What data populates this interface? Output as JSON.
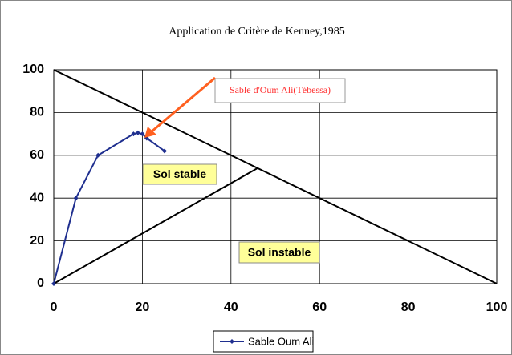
{
  "chart_data": {
    "type": "line",
    "title": "Application de Critère de Kenney,1985",
    "series": [
      {
        "name": "Sable Oum Ali",
        "color": "#1f2f8f",
        "x": [
          0,
          5,
          10,
          18,
          19,
          20,
          21,
          25
        ],
        "values": [
          0,
          40,
          60,
          70,
          70.5,
          70,
          68,
          62
        ]
      }
    ],
    "reference_lines": [
      {
        "color": "#000000",
        "x": [
          0,
          100
        ],
        "values": [
          100,
          0
        ]
      },
      {
        "color": "#000000",
        "x": [
          0,
          46
        ],
        "values": [
          0,
          54
        ]
      }
    ],
    "annotations": [
      "Sable d'Oum Ali(Tébessa)",
      "Sol stable",
      "Sol instable"
    ],
    "xlim": [
      0,
      100
    ],
    "xticks": [
      0,
      20,
      40,
      60,
      80,
      100
    ],
    "ylim": [
      0,
      100
    ],
    "yticks": [
      0,
      20,
      40,
      60,
      80,
      100
    ],
    "grid": true,
    "legend": "bottom"
  }
}
